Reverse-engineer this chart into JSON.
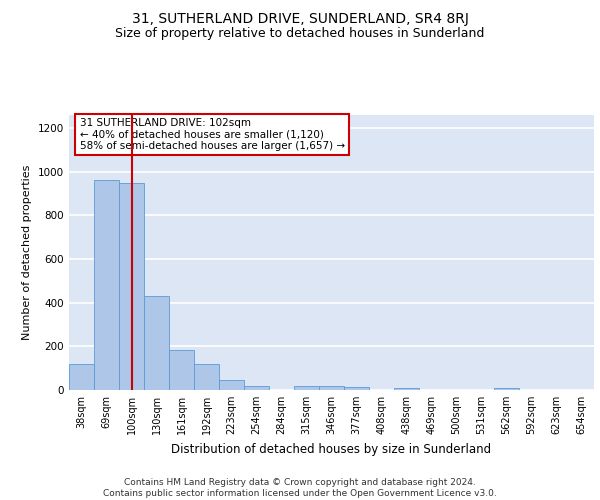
{
  "title": "31, SUTHERLAND DRIVE, SUNDERLAND, SR4 8RJ",
  "subtitle": "Size of property relative to detached houses in Sunderland",
  "xlabel": "Distribution of detached houses by size in Sunderland",
  "ylabel": "Number of detached properties",
  "categories": [
    "38sqm",
    "69sqm",
    "100sqm",
    "130sqm",
    "161sqm",
    "192sqm",
    "223sqm",
    "254sqm",
    "284sqm",
    "315sqm",
    "346sqm",
    "377sqm",
    "408sqm",
    "438sqm",
    "469sqm",
    "500sqm",
    "531sqm",
    "562sqm",
    "592sqm",
    "623sqm",
    "654sqm"
  ],
  "values": [
    120,
    960,
    950,
    430,
    185,
    120,
    47,
    20,
    0,
    20,
    18,
    12,
    0,
    10,
    0,
    0,
    0,
    10,
    0,
    0,
    0
  ],
  "bar_color": "#aec6e8",
  "bar_edge_color": "#5b9bd5",
  "vline_x_index": 2,
  "vline_color": "#cc0000",
  "annotation_text": "31 SUTHERLAND DRIVE: 102sqm\n← 40% of detached houses are smaller (1,120)\n58% of semi-detached houses are larger (1,657) →",
  "annotation_box_color": "#ffffff",
  "annotation_box_edge": "#cc0000",
  "ylim": [
    0,
    1260
  ],
  "yticks": [
    0,
    200,
    400,
    600,
    800,
    1000,
    1200
  ],
  "background_color": "#dce6f5",
  "grid_color": "#ffffff",
  "footer": "Contains HM Land Registry data © Crown copyright and database right 2024.\nContains public sector information licensed under the Open Government Licence v3.0.",
  "title_fontsize": 10,
  "subtitle_fontsize": 9,
  "xlabel_fontsize": 8.5,
  "ylabel_fontsize": 8,
  "annotation_fontsize": 7.5,
  "footer_fontsize": 6.5,
  "tick_fontsize": 7
}
